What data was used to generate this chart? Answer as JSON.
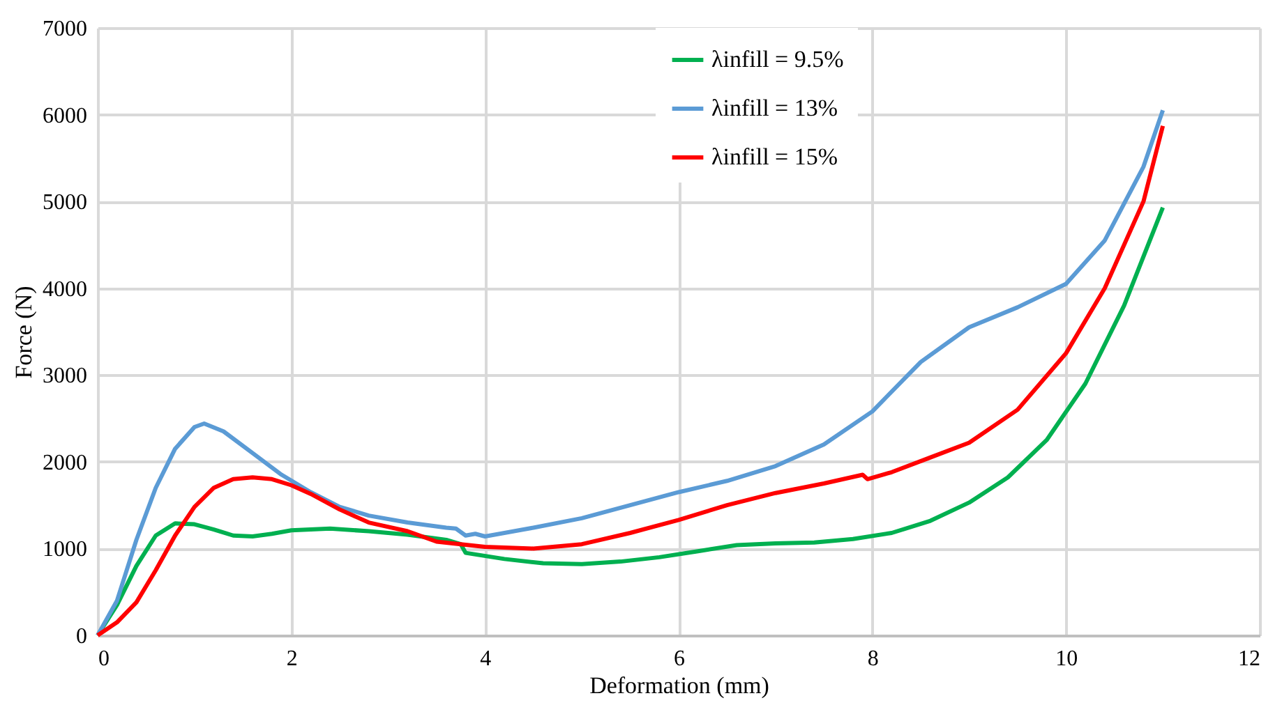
{
  "chart_data": {
    "type": "line",
    "xlabel": "Deformation (mm)",
    "ylabel": "Force (N)",
    "xlim": [
      0,
      12
    ],
    "xticks": [
      0,
      2,
      4,
      6,
      8,
      10,
      12
    ],
    "ylim": [
      0,
      7000
    ],
    "yticks": [
      0,
      1000,
      2000,
      3000,
      4000,
      5000,
      6000,
      7000
    ],
    "grid": true,
    "legend": "top right",
    "marker": "none",
    "line_style": "solid",
    "series": [
      {
        "name": "λinfill = 9.5%",
        "color": "#00b050",
        "x": [
          0,
          0.2,
          0.4,
          0.6,
          0.8,
          1.0,
          1.2,
          1.4,
          1.6,
          1.8,
          2.0,
          2.4,
          2.8,
          3.2,
          3.6,
          3.75,
          3.8,
          4.2,
          4.6,
          5.0,
          5.4,
          5.8,
          6.2,
          6.6,
          7.0,
          7.4,
          7.8,
          8.2,
          8.6,
          9.0,
          9.4,
          9.8,
          10.2,
          10.6,
          11.0
        ],
        "values": [
          0,
          350,
          800,
          1150,
          1290,
          1280,
          1220,
          1150,
          1140,
          1170,
          1210,
          1230,
          1200,
          1160,
          1100,
          1050,
          950,
          880,
          830,
          820,
          850,
          900,
          970,
          1040,
          1060,
          1070,
          1110,
          1180,
          1320,
          1530,
          1820,
          2250,
          2900,
          3800,
          4930
        ]
      },
      {
        "name": "λinfill = 13%",
        "color": "#5b9bd5",
        "x": [
          0,
          0.2,
          0.4,
          0.6,
          0.8,
          1.0,
          1.1,
          1.3,
          1.6,
          1.9,
          2.2,
          2.5,
          2.8,
          3.2,
          3.6,
          3.7,
          3.8,
          3.9,
          4.0,
          4.5,
          5.0,
          5.5,
          6.0,
          6.5,
          7.0,
          7.5,
          8.0,
          8.5,
          9.0,
          9.5,
          10.0,
          10.4,
          10.8,
          11.0
        ],
        "values": [
          0,
          400,
          1100,
          1700,
          2150,
          2400,
          2440,
          2350,
          2100,
          1850,
          1650,
          1480,
          1380,
          1300,
          1240,
          1230,
          1150,
          1170,
          1140,
          1240,
          1350,
          1500,
          1650,
          1780,
          1950,
          2200,
          2580,
          3150,
          3550,
          3780,
          4050,
          4550,
          5400,
          6050
        ]
      },
      {
        "name": "λinfill = 15%",
        "color": "#ff0000",
        "x": [
          0,
          0.2,
          0.4,
          0.6,
          0.8,
          1.0,
          1.2,
          1.4,
          1.6,
          1.8,
          2.0,
          2.2,
          2.5,
          2.8,
          3.2,
          3.5,
          4.0,
          4.5,
          5.0,
          5.5,
          6.0,
          6.5,
          7.0,
          7.5,
          7.9,
          7.95,
          8.2,
          8.6,
          9.0,
          9.5,
          10.0,
          10.4,
          10.8,
          11.0
        ],
        "values": [
          0,
          150,
          380,
          750,
          1150,
          1480,
          1700,
          1800,
          1820,
          1800,
          1730,
          1630,
          1450,
          1300,
          1200,
          1080,
          1020,
          1000,
          1050,
          1180,
          1330,
          1500,
          1640,
          1750,
          1850,
          1800,
          1880,
          2050,
          2220,
          2600,
          3250,
          4000,
          5000,
          5870
        ]
      }
    ]
  }
}
